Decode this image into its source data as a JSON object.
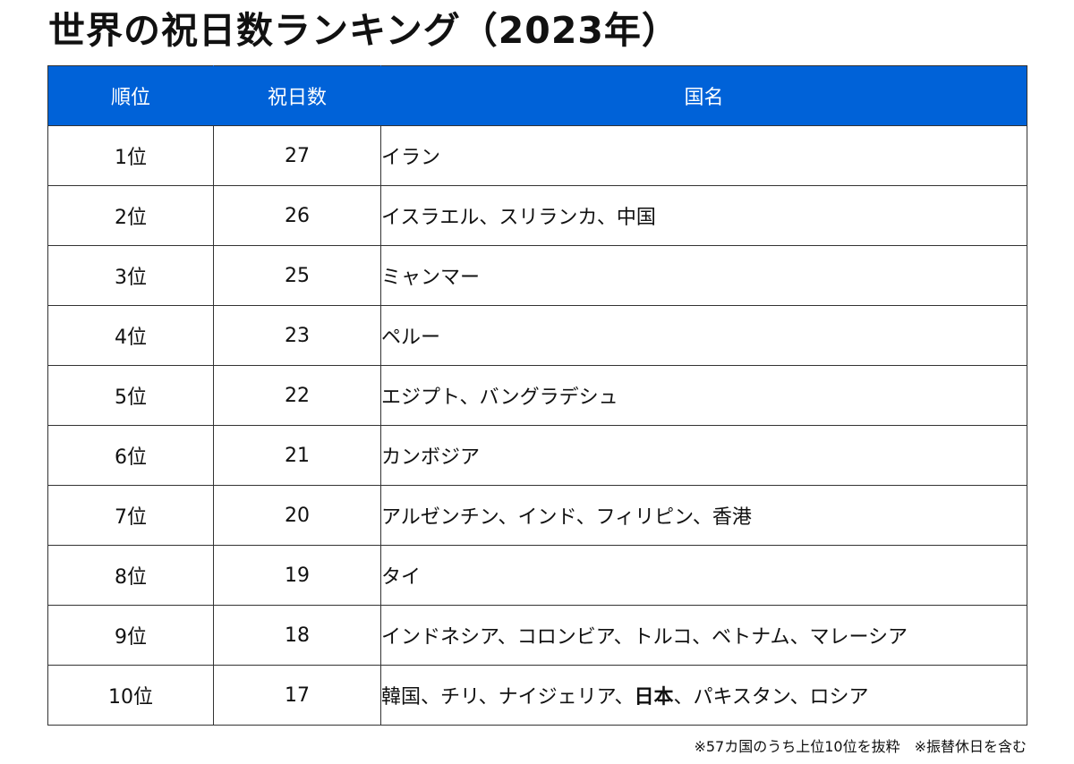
{
  "title": "世界の祝日数ランキング（2023年）",
  "table": {
    "headers": {
      "rank": "順位",
      "days": "祝日数",
      "country": "国名"
    },
    "rows": [
      {
        "rank": "1位",
        "days": "27",
        "countries": "イラン"
      },
      {
        "rank": "2位",
        "days": "26",
        "countries": "イスラエル、スリランカ、中国"
      },
      {
        "rank": "3位",
        "days": "25",
        "countries": "ミャンマー"
      },
      {
        "rank": "4位",
        "days": "23",
        "countries": "ペルー"
      },
      {
        "rank": "5位",
        "days": "22",
        "countries": "エジプト、バングラデシュ"
      },
      {
        "rank": "6位",
        "days": "21",
        "countries": "カンボジア"
      },
      {
        "rank": "7位",
        "days": "20",
        "countries": "アルゼンチン、インド、フィリピン、香港"
      },
      {
        "rank": "8位",
        "days": "19",
        "countries": "タイ"
      },
      {
        "rank": "9位",
        "days": "18",
        "countries": "インドネシア、コロンビア、トルコ、ベトナム、マレーシア"
      },
      {
        "rank": "10位",
        "days": "17",
        "countries_before": "韓国、チリ、ナイジェリア、",
        "countries_emphasis": "日本",
        "countries_after": "、パキスタン、ロシア"
      }
    ]
  },
  "footnote": "※57カ国のうち上位10位を抜粋　※振替休日を含む"
}
